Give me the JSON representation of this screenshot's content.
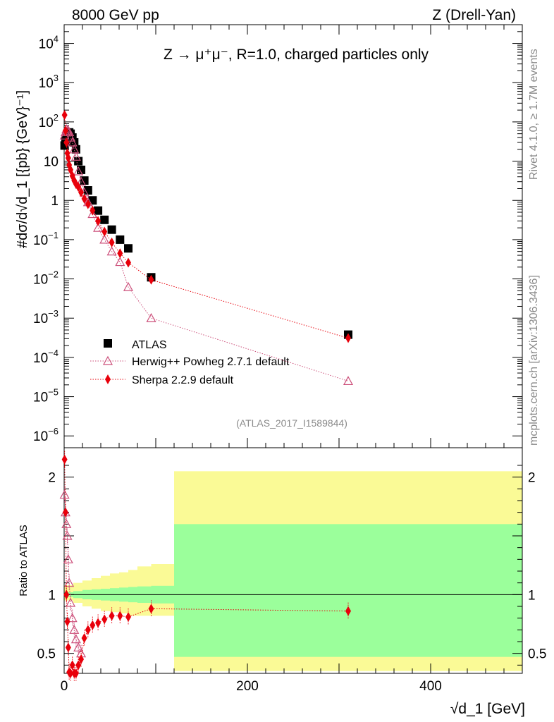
{
  "header": {
    "left": "8000 GeV pp",
    "right": "Z (Drell-Yan)"
  },
  "side": {
    "rivet": "Rivet 4.1.0, ≥ 1.7M events",
    "mcplots": "mcplots.cern.ch [arXiv:1306.3436]"
  },
  "chart_data": {
    "type": "scatter",
    "title": "Z → μ⁺μ⁻, R=1.0, charged particles only",
    "xlabel": "√d_1 [GeV]",
    "ylabel": "#dσ/d√d_1 [{pb} {GeV}⁻¹]",
    "ratio_ylabel": "Ratio to ATLAS",
    "analysis_label": "(ATLAS_2017_I1589844)",
    "xlim": [
      0,
      500
    ],
    "ylim": [
      5e-07,
      30000
    ],
    "ratio_ylim": [
      0.33,
      2.25
    ],
    "main_y_ticks": [
      {
        "v": 10000.0,
        "base": "10",
        "exp": "4"
      },
      {
        "v": 1000.0,
        "base": "10",
        "exp": "3"
      },
      {
        "v": 100.0,
        "base": "10",
        "exp": "2"
      },
      {
        "v": 10,
        "base": "10",
        "exp": ""
      },
      {
        "v": 1,
        "base": "1",
        "exp": ""
      },
      {
        "v": 0.1,
        "base": "10",
        "exp": "−1"
      },
      {
        "v": 0.01,
        "base": "10",
        "exp": "−2"
      },
      {
        "v": 0.001,
        "base": "10",
        "exp": "−3"
      },
      {
        "v": 0.0001,
        "base": "10",
        "exp": "−4"
      },
      {
        "v": 1e-05,
        "base": "10",
        "exp": "−5"
      },
      {
        "v": 1e-06,
        "base": "10",
        "exp": "−6"
      }
    ],
    "ratio_y_ticks": [
      {
        "v": 2,
        "label": "2"
      },
      {
        "v": 1,
        "label": "1"
      },
      {
        "v": 0.5,
        "label": "0.5"
      }
    ],
    "x_ticks": [
      {
        "v": 0,
        "label": "0"
      },
      {
        "v": 200,
        "label": "200"
      },
      {
        "v": 400,
        "label": "400"
      }
    ],
    "legend": [
      {
        "name": "ATLAS",
        "color": "#000000",
        "marker": "square"
      },
      {
        "name": "Herwig++ Powheg 2.7.1 default",
        "color": "#cc4f7a",
        "marker": "triangle"
      },
      {
        "name": "Sherpa 2.2.9 default",
        "color": "#e8000b",
        "marker": "diamond"
      }
    ],
    "series": [
      {
        "name": "ATLAS",
        "x": [
          0.5,
          1.5,
          2.5,
          3.5,
          4.5,
          5.5,
          7,
          9,
          11,
          13,
          15.5,
          18.5,
          22,
          26,
          31,
          37,
          44,
          52,
          61,
          70,
          95,
          310
        ],
        "y": [
          25,
          32,
          40,
          48,
          52,
          54,
          50,
          40,
          30,
          20,
          10,
          6,
          3.2,
          1.8,
          1.0,
          0.55,
          0.32,
          0.18,
          0.1,
          0.06,
          0.011,
          0.00038
        ]
      },
      {
        "name": "Herwig++ Powheg 2.7.1 default",
        "x": [
          0.5,
          1.5,
          2.5,
          3.5,
          4.5,
          5.5,
          7,
          9,
          11,
          13,
          15.5,
          18.5,
          22,
          26,
          31,
          37,
          44,
          52,
          61,
          70,
          95,
          310
        ],
        "y": [
          45,
          55,
          65,
          60,
          60,
          55,
          40,
          30,
          20,
          13,
          5.5,
          3,
          1.6,
          0.9,
          0.45,
          0.2,
          0.1,
          0.05,
          0.027,
          0.0062,
          0.001,
          2.5e-05
        ]
      },
      {
        "name": "Sherpa 2.2.9 default",
        "x": [
          0.5,
          1.5,
          2.5,
          3.5,
          4.5,
          5.5,
          7,
          9,
          11,
          13,
          15.5,
          18.5,
          22,
          26,
          31,
          37,
          44,
          52,
          61,
          70,
          95,
          310
        ],
        "y": [
          150,
          60,
          30,
          16,
          12,
          8,
          6,
          4.2,
          3.2,
          2.6,
          2.2,
          1.6,
          1.1,
          0.8,
          0.55,
          0.3,
          0.16,
          0.085,
          0.045,
          0.026,
          0.0095,
          0.00031
        ]
      }
    ],
    "ratio_series": [
      {
        "name": "Herwig++ Powheg 2.7.1 default",
        "x": [
          0.5,
          1.5,
          2.5,
          3.5,
          4.5,
          5.5,
          7,
          9,
          11,
          13,
          15.5,
          18.5
        ],
        "y": [
          1.85,
          1.7,
          1.6,
          1.5,
          1.3,
          1.1,
          0.93,
          0.8,
          0.7,
          0.62,
          0.55,
          0.5
        ]
      },
      {
        "name": "Sherpa 2.2.9 default",
        "x": [
          0.5,
          1.5,
          2.5,
          3.5,
          4.5,
          5.5,
          7,
          9,
          11,
          13,
          15.5,
          18.5,
          22,
          26,
          31,
          37,
          44,
          52,
          61,
          70,
          95,
          310
        ],
        "y": [
          2.15,
          1.7,
          1.0,
          0.77,
          0.55,
          0.34,
          0.33,
          0.4,
          0.33,
          0.33,
          0.4,
          0.45,
          0.63,
          0.7,
          0.74,
          0.76,
          0.79,
          0.82,
          0.82,
          0.81,
          0.88,
          0.86
        ]
      }
    ],
    "ratio_bands": {
      "edges": [
        0,
        10,
        20,
        30,
        40,
        50,
        60,
        70,
        80,
        95,
        120,
        500
      ],
      "inner_hi": [
        1.02,
        1.03,
        1.04,
        1.045,
        1.05,
        1.055,
        1.06,
        1.065,
        1.07,
        1.075,
        1.6
      ],
      "inner_lo": [
        0.98,
        0.97,
        0.96,
        0.955,
        0.95,
        0.945,
        0.94,
        0.935,
        0.93,
        0.925,
        0.47
      ],
      "outer_hi": [
        1.08,
        1.1,
        1.12,
        1.14,
        1.16,
        1.18,
        1.19,
        1.21,
        1.24,
        1.26,
        2.05
      ],
      "outer_lo": [
        0.95,
        0.93,
        0.9,
        0.88,
        0.86,
        0.85,
        0.84,
        0.82,
        0.82,
        0.82,
        0.35
      ]
    }
  }
}
